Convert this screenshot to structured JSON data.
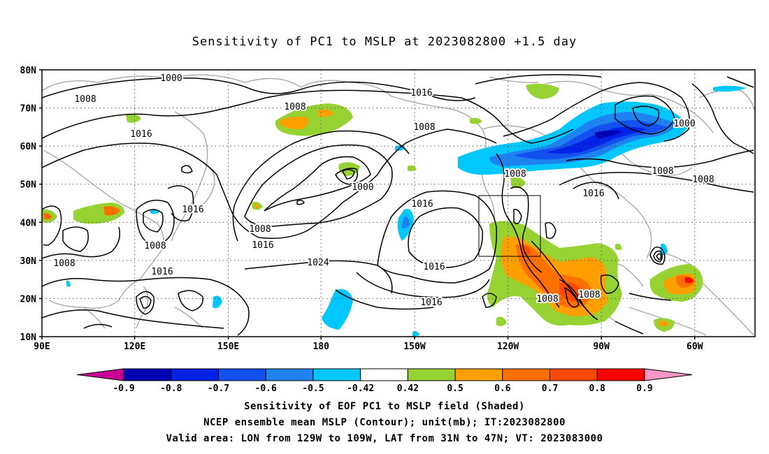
{
  "title": "Sensitivity of PC1 to MSLP at 2023082800 +1.5 day",
  "axes": {
    "lat_labels": [
      "80N",
      "70N",
      "60N",
      "50N",
      "40N",
      "30N",
      "20N",
      "10N"
    ],
    "lon_labels": [
      "90E",
      "120E",
      "150E",
      "180",
      "150W",
      "120W",
      "90W",
      "60W"
    ]
  },
  "contour_labels": [
    {
      "text": "1000"
    },
    {
      "text": "1008"
    },
    {
      "text": "1008"
    },
    {
      "text": "1016"
    },
    {
      "text": "1016"
    },
    {
      "text": "1008"
    },
    {
      "text": "1000"
    },
    {
      "text": "1016"
    },
    {
      "text": "1008"
    },
    {
      "text": "1016"
    },
    {
      "text": "1008"
    },
    {
      "text": "1008"
    },
    {
      "text": "1016"
    },
    {
      "text": "1024"
    },
    {
      "text": "1016"
    },
    {
      "text": "1016"
    },
    {
      "text": "1016"
    },
    {
      "text": "1008"
    },
    {
      "text": "1000"
    },
    {
      "text": "1016"
    },
    {
      "text": "1008"
    },
    {
      "text": "1008"
    },
    {
      "text": "1008"
    },
    {
      "text": "1008"
    }
  ],
  "colorbar": {
    "labels": [
      "-0.9",
      "-0.8",
      "-0.7",
      "-0.6",
      "-0.5",
      "-0.42",
      "0.42",
      "0.5",
      "0.6",
      "0.7",
      "0.8",
      "0.9"
    ],
    "colors": [
      "#0000b4",
      "#0022e6",
      "#1450f0",
      "#1e82f0",
      "#00c8ff",
      "#ffffff",
      "#96d232",
      "#ffa000",
      "#ff7000",
      "#ff4a00",
      "#ff0000"
    ],
    "low_end_color": "#c80096",
    "high_end_color": "#ff96c8"
  },
  "captions": [
    "Sensitivity of EOF PC1 to MSLP field (Shaded)",
    "NCEP ensemble mean MSLP (Contour); unit(mb); IT:2023082800",
    "Valid area: LON from 129W to 109W, LAT from 31N to 47N; VT: 2023083000"
  ]
}
